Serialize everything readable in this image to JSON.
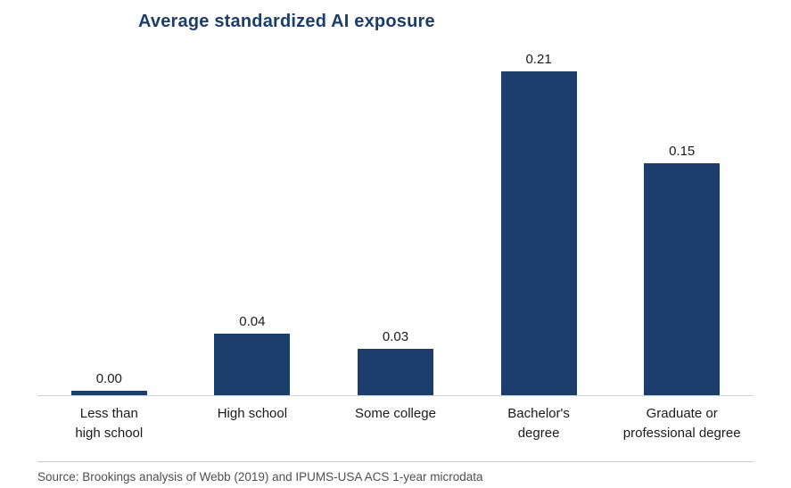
{
  "title": "Average standardized AI exposure",
  "source": "Source: Brookings analysis of Webb (2019) and IPUMS-USA ACS 1-year microdata",
  "colors": {
    "bar": "#1b3e6d",
    "title": "#1b3e6d"
  },
  "chart_data": {
    "type": "bar",
    "title": "Average standardized AI exposure",
    "categories": [
      "Less than high school",
      "High school",
      "Some college",
      "Bachelor's degree",
      "Graduate or professional degree"
    ],
    "values": [
      0.0,
      0.04,
      0.03,
      0.21,
      0.15
    ],
    "value_labels": [
      "0.00",
      "0.04",
      "0.03",
      "0.21",
      "0.15"
    ],
    "label_lines": [
      [
        "Less than",
        "high school"
      ],
      [
        "High school"
      ],
      [
        "Some college"
      ],
      [
        "Bachelor's",
        "degree"
      ],
      [
        "Graduate or",
        "professional degree"
      ]
    ],
    "xlabel": "",
    "ylabel": "",
    "ylim": [
      0,
      0.23
    ],
    "grid": false,
    "legend": "none",
    "source": "Source: Brookings analysis of Webb (2019) and IPUMS-USA ACS 1-year microdata"
  }
}
